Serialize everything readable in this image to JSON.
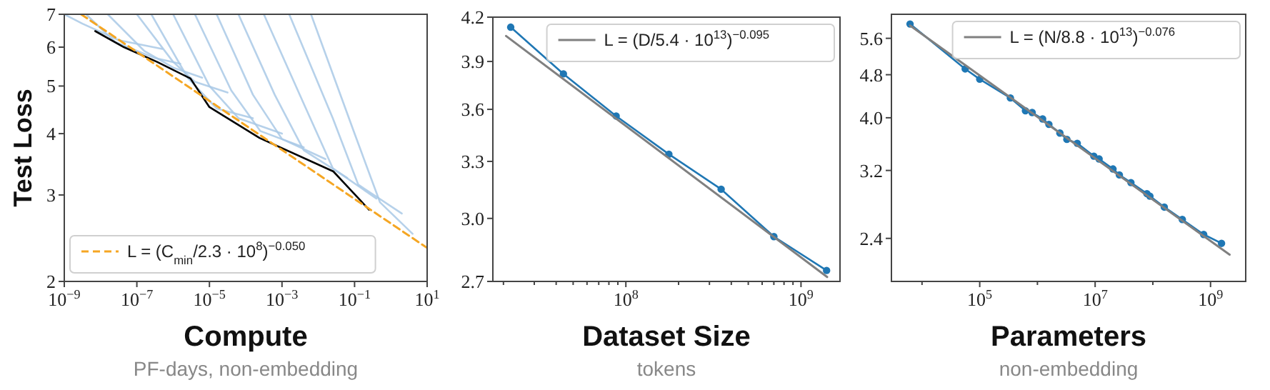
{
  "chart_data": [
    {
      "type": "line",
      "ylabel": "Test Loss",
      "xlabel": "Compute",
      "annotations": [
        "PF-days, non-embedding"
      ],
      "log": "xy",
      "legend": "bottom left",
      "xlim": [
        1e-09,
        10
      ],
      "ylim": [
        2,
        7
      ],
      "xticks": [
        {
          "value": 1e-09,
          "label": "10$^{−9}$"
        },
        {
          "value": 1e-07,
          "label": "10$^{−7}$"
        },
        {
          "value": 1e-05,
          "label": "10$^{−5}$"
        },
        {
          "value": 0.001,
          "label": "10$^{−3}$"
        },
        {
          "value": 0.1,
          "label": "10$^{−1}$"
        },
        {
          "value": 10,
          "label": "10$^{1}$"
        }
      ],
      "yticks": [
        2,
        3,
        4,
        5,
        6,
        7
      ],
      "series": [
        {
          "color": "#a9c9e6",
          "x": [
            1e-09,
            3.16e-09,
            3.16e-08,
            5e-07
          ],
          "values": [
            7,
            6.7,
            6.2,
            5.95
          ]
        },
        {
          "color": "#a9c9e6",
          "x": [
            3.98e-09,
            2.51e-08,
            3.16e-07,
            1.58e-06
          ],
          "values": [
            7,
            6.15,
            5.7,
            5.55
          ]
        },
        {
          "color": "#a9c9e6",
          "x": [
            1.58e-08,
            1.58e-07,
            1e-06,
            6.3e-06
          ],
          "values": [
            7,
            5.9,
            5.45,
            5.2
          ]
        },
        {
          "color": "#a9c9e6",
          "x": [
            1e-07,
            1e-06,
            3.98e-06,
            3.16e-05
          ],
          "values": [
            7,
            5.6,
            5.1,
            4.85
          ]
        },
        {
          "color": "#a9c9e6",
          "x": [
            2.51e-07,
            2.51e-06,
            1.58e-05,
            0.000158
          ],
          "values": [
            7,
            5.2,
            4.5,
            4.3
          ]
        },
        {
          "color": "#a9c9e6",
          "x": [
            1e-06,
            1e-05,
            6.3e-05,
            0.001
          ],
          "values": [
            7,
            5.0,
            4.3,
            4.0
          ]
        },
        {
          "color": "#a9c9e6",
          "x": [
            3.98e-06,
            3.98e-05,
            0.000251,
            0.00398
          ],
          "values": [
            7,
            4.9,
            4.05,
            3.75
          ]
        },
        {
          "color": "#a9c9e6",
          "x": [
            1.58e-05,
            0.000158,
            0.001,
            0.0158
          ],
          "values": [
            7,
            4.8,
            3.9,
            3.55
          ]
        },
        {
          "color": "#a9c9e6",
          "x": [
            6.3e-05,
            0.00063,
            0.00398,
            0.063
          ],
          "values": [
            7,
            4.8,
            3.7,
            3.25
          ]
        },
        {
          "color": "#a9c9e6",
          "x": [
            0.000316,
            0.00398,
            0.0251,
            0.398
          ],
          "values": [
            7,
            4.6,
            3.4,
            2.95
          ]
        },
        {
          "color": "#a9c9e6",
          "x": [
            0.00158,
            0.0251,
            0.126,
            2.0
          ],
          "values": [
            7,
            4.3,
            3.15,
            2.75
          ]
        },
        {
          "color": "#a9c9e6",
          "x": [
            0.0063,
            0.1,
            0.5,
            3.98
          ],
          "values": [
            7,
            4.0,
            2.9,
            2.5
          ]
        },
        {
          "color": "#000000",
          "x": [
            7.1e-09,
            4.4e-08,
            3.6e-07,
            3e-06,
            1e-05,
            0.00024,
            0.026,
            0.25
          ],
          "values": [
            6.47,
            6.0,
            5.6,
            5.18,
            4.53,
            3.92,
            3.35,
            2.8
          ]
        },
        {
          "name": "L = (C$_{min}$/2.3 · 10$^{8}$)$^{−0.050}$",
          "color": "#f5a623",
          "line_style": "dashed",
          "x": [
            2.9e-09,
            10
          ],
          "values": [
            7.0,
            2.34
          ]
        }
      ]
    },
    {
      "type": "line",
      "xlabel": "Dataset Size",
      "annotations": [
        "tokens"
      ],
      "log": "xy",
      "legend": "top right",
      "xlim": [
        17400000.0,
        1670000000.0
      ],
      "ylim": [
        2.7,
        4.2
      ],
      "xticks": [
        {
          "value": 20000000.0,
          "label": null
        },
        {
          "value": 30000000.0,
          "label": null
        },
        {
          "value": 40000000.0,
          "label": null
        },
        {
          "value": 50000000.0,
          "label": null
        },
        {
          "value": 60000000.0,
          "label": null
        },
        {
          "value": 70000000.0,
          "label": null
        },
        {
          "value": 80000000.0,
          "label": null
        },
        {
          "value": 90000000.0,
          "label": null
        },
        {
          "value": 100000000.0,
          "label": "10$^{8}$"
        },
        {
          "value": 200000000.0,
          "label": null
        },
        {
          "value": 300000000.0,
          "label": null
        },
        {
          "value": 400000000.0,
          "label": null
        },
        {
          "value": 500000000.0,
          "label": null
        },
        {
          "value": 600000000.0,
          "label": null
        },
        {
          "value": 700000000.0,
          "label": null
        },
        {
          "value": 800000000.0,
          "label": null
        },
        {
          "value": 900000000.0,
          "label": null
        },
        {
          "value": 1000000000.0,
          "label": "10$^{9}$"
        }
      ],
      "yticks": [
        2.7,
        {
          "value": 3,
          "label": "3.0"
        },
        3.3,
        3.6,
        3.9,
        4.2
      ],
      "series": [
        {
          "color": "#1f77b4",
          "marker": "circle",
          "x": [
            22000000.0,
            44000000.0,
            88000000.0,
            176000000.0,
            350000000.0,
            700000000.0,
            1400000000.0
          ],
          "values": [
            4.13,
            3.82,
            3.56,
            3.34,
            3.15,
            2.91,
            2.75
          ]
        },
        {
          "name": "L = (D/5.4 · 10$^{13}$)$^{−0.095}$",
          "color": "#808080",
          "x": [
            20700000.0,
            1410000000.0
          ],
          "values": [
            4.07,
            2.72
          ]
        }
      ]
    },
    {
      "type": "line",
      "xlabel": "Parameters",
      "annotations": [
        "non-embedding"
      ],
      "log": "xy",
      "legend": "top right",
      "xlim": [
        2950.0,
        4070000000.0
      ],
      "ylim": [
        2.0,
        6.2
      ],
      "xticks": [
        {
          "value": 10000.0,
          "label": null
        },
        {
          "value": 100000.0,
          "label": "10$^{5}$"
        },
        {
          "value": 1000000.0,
          "label": null
        },
        {
          "value": 10000000.0,
          "label": "10$^{7}$"
        },
        {
          "value": 100000000.0,
          "label": null
        },
        {
          "value": 1000000000.0,
          "label": "10$^{9}$"
        }
      ],
      "yticks": [
        2.4,
        3.2,
        {
          "value": 4,
          "label": "4.0"
        },
        4.8,
        5.6
      ],
      "series": [
        {
          "color": "#1f77b4",
          "marker": "circle",
          "x": [
            6200.0,
            56000.0,
            100000.0,
            340000.0,
            620000.0,
            810000.0,
            1230000.0,
            1580000.0,
            2450000.0,
            3240000.0,
            4900000.0,
            9500000.0,
            11700000.0,
            20400000.0,
            26300000.0,
            41700000.0,
            79000000.0,
            89000000.0,
            158000000.0,
            324000000.0,
            760000000.0,
            1550000000.0
          ],
          "values": [
            5.95,
            4.92,
            4.71,
            4.35,
            4.12,
            4.09,
            3.98,
            3.89,
            3.75,
            3.65,
            3.59,
            3.4,
            3.36,
            3.22,
            3.14,
            3.04,
            2.9,
            2.87,
            2.74,
            2.6,
            2.44,
            2.35
          ]
        },
        {
          "name": "L = (N/8.8 · 10$^{13}$)$^{−0.076}$",
          "color": "#808080",
          "x": [
            6200.0,
            2140000000.0
          ],
          "values": [
            5.91,
            2.24
          ]
        }
      ]
    }
  ]
}
